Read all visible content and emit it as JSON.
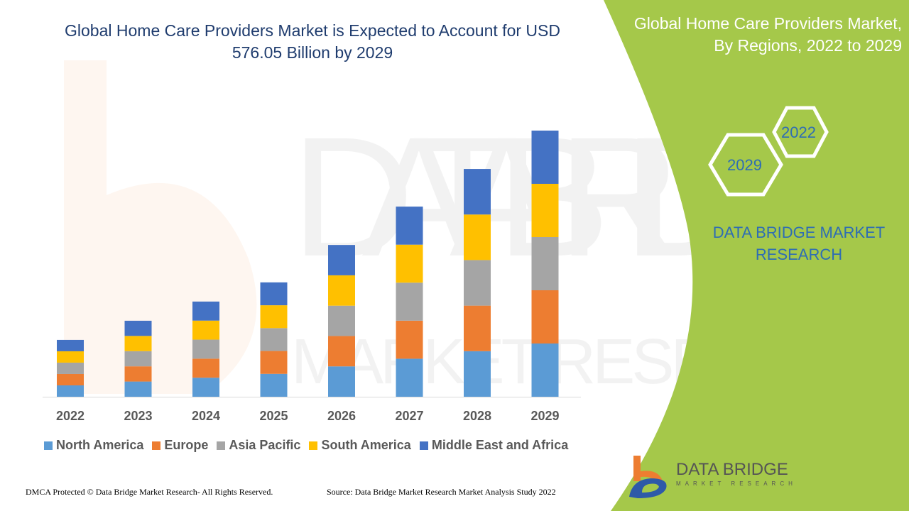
{
  "title": "Global Home Care Providers Market is Expected to Account for USD 576.05 Billion by 2029",
  "side_panel": {
    "title": "Global Home Care Providers Market, By Regions, 2022 to 2029",
    "hex_years": [
      "2022",
      "2029"
    ],
    "brand": "DATA BRIDGE MARKET RESEARCH",
    "color": "#a5c84a"
  },
  "logo": {
    "name": "DATA BRIDGE",
    "tagline": "MARKET RESEARCH"
  },
  "watermark": "DATA BRIDGE MARKET RESEARCH",
  "footer": {
    "left": "DMCA Protected © Data Bridge Market Research- All Rights Reserved.",
    "right": "Source: Data Bridge Market Research Market Analysis Study 2022"
  },
  "chart_data": {
    "type": "bar",
    "stacked": true,
    "title": "Global Home Care Providers Market is Expected to Account for USD 576.05 Billion by 2029",
    "xlabel": "",
    "ylabel": "",
    "unit": "USD Billion",
    "grid": false,
    "legend_position": "bottom",
    "categories": [
      "2022",
      "2023",
      "2024",
      "2025",
      "2026",
      "2027",
      "2028",
      "2029"
    ],
    "ylim": [
      0,
      576.05
    ],
    "series": [
      {
        "name": "North America",
        "color": "#5b9bd5",
        "values": [
          24.6,
          32.9,
          41.2,
          49.5,
          65.7,
          82.3,
          98.6,
          115.21
        ]
      },
      {
        "name": "Europe",
        "color": "#ed7d31",
        "values": [
          24.6,
          32.9,
          41.2,
          49.5,
          65.7,
          82.3,
          98.6,
          115.21
        ]
      },
      {
        "name": "Asia Pacific",
        "color": "#a5a5a5",
        "values": [
          24.6,
          32.9,
          41.2,
          49.5,
          65.7,
          82.3,
          98.6,
          115.21
        ]
      },
      {
        "name": "South America",
        "color": "#ffc000",
        "values": [
          24.6,
          32.9,
          41.2,
          49.5,
          65.7,
          82.3,
          98.6,
          115.21
        ]
      },
      {
        "name": "Middle East and Africa",
        "color": "#4472c4",
        "values": [
          24.6,
          32.9,
          41.2,
          49.5,
          65.7,
          82.3,
          98.6,
          115.21
        ]
      }
    ]
  }
}
